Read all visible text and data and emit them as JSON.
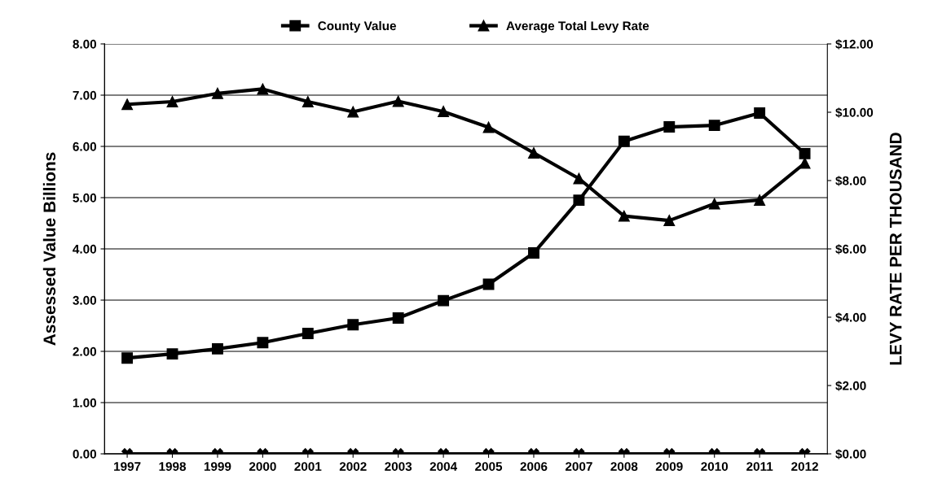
{
  "chart_data": {
    "type": "line",
    "ylabel": "Assessed Value Billions",
    "y2label": "LEVY RATE PER THOUSAND",
    "categories": [
      "1997",
      "1998",
      "1999",
      "2000",
      "2001",
      "2002",
      "2003",
      "2004",
      "2005",
      "2006",
      "2007",
      "2008",
      "2009",
      "2010",
      "2011",
      "2012"
    ],
    "series": [
      {
        "name": "County Value",
        "color": "#000000",
        "marker": "square",
        "values": [
          1.87,
          1.95,
          2.05,
          2.17,
          2.35,
          2.52,
          2.65,
          2.99,
          3.31,
          3.92,
          4.95,
          6.1,
          6.38,
          6.41,
          6.65,
          5.86
        ]
      },
      {
        "name": "Average Total Levy Rate",
        "color": "#000000",
        "marker": "triangle",
        "axis": "y2",
        "values": [
          10.23,
          10.31,
          10.55,
          10.68,
          10.31,
          10.01,
          10.32,
          10.02,
          9.56,
          8.81,
          8.06,
          6.96,
          6.83,
          7.32,
          7.43,
          8.51
        ]
      },
      {
        "color": "#000000",
        "marker": "cross",
        "values": [
          0,
          0,
          0,
          0,
          0,
          0,
          0,
          0,
          0,
          0,
          0,
          0,
          0,
          0,
          0,
          0
        ]
      }
    ],
    "ylim": [
      0,
      8
    ],
    "yticks": [
      {
        "value": 0,
        "label": "0.00"
      },
      {
        "value": 1,
        "label": "1.00"
      },
      {
        "value": 2,
        "label": "2.00"
      },
      {
        "value": 3,
        "label": "3.00"
      },
      {
        "value": 4,
        "label": "4.00"
      },
      {
        "value": 5,
        "label": "5.00"
      },
      {
        "value": 6,
        "label": "6.00"
      },
      {
        "value": 7,
        "label": "7.00"
      },
      {
        "value": 8,
        "label": "8.00"
      }
    ],
    "y2lim": [
      0,
      12
    ],
    "y2ticks": [
      {
        "value": 0,
        "label": "$0.00"
      },
      {
        "value": 2,
        "label": "$2.00"
      },
      {
        "value": 4,
        "label": "$4.00"
      },
      {
        "value": 6,
        "label": "$6.00"
      },
      {
        "value": 8,
        "label": "$8.00"
      },
      {
        "value": 10,
        "label": "$10.00"
      },
      {
        "value": 12,
        "label": "$12.00"
      }
    ],
    "grid": "y",
    "legend": "top",
    "line_style": "solid"
  }
}
